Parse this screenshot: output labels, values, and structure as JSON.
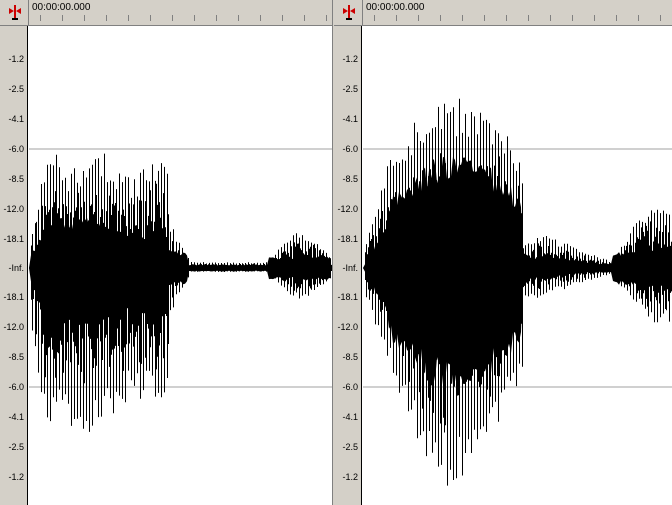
{
  "panels": [
    {
      "id": "left",
      "time_label": "00:00:00.000",
      "db_scale": [
        "-1.2",
        "-2.5",
        "-4.1",
        "-6.0",
        "-8.5",
        "-12.0",
        "-18.1",
        "-Inf.",
        "-18.1",
        "-12.0",
        "-8.5",
        "-6.0",
        "-4.1",
        "-2.5",
        "-1.2"
      ],
      "gridline_levels": [
        "-6.0",
        "-6.0"
      ]
    },
    {
      "id": "right",
      "time_label": "00:00:00.000",
      "db_scale": [
        "-1.2",
        "-2.5",
        "-4.1",
        "-6.0",
        "-8.5",
        "-12.0",
        "-18.1",
        "-Inf.",
        "-18.1",
        "-12.0",
        "-8.5",
        "-6.0",
        "-4.1",
        "-2.5",
        "-1.2"
      ],
      "gridline_levels": [
        "-6.0",
        "-6.0"
      ]
    }
  ],
  "colors": {
    "waveform": "#000000",
    "background": "#ffffff",
    "chrome": "#d4d0c8",
    "gridline": "#a0a0a0",
    "marker": "#cc0000"
  }
}
